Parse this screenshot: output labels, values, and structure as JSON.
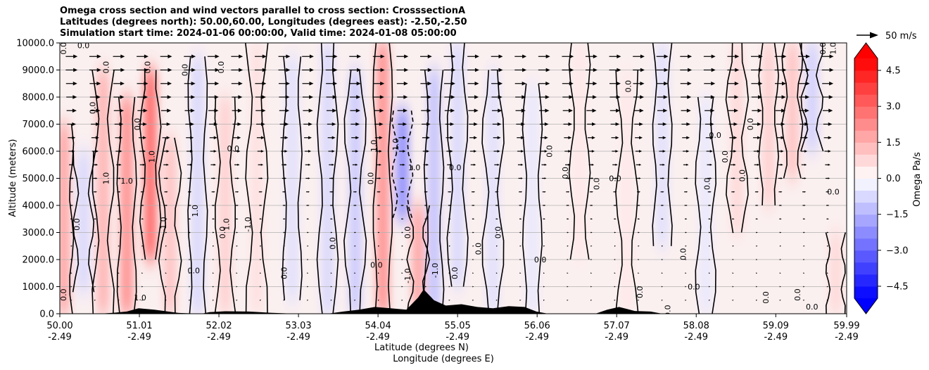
{
  "chart_data": {
    "type": "heatmap",
    "title_lines": [
      "Omega cross section and wind vectors parallel to cross section: CrosssectionA",
      "Latitudes (degrees north): 50.00,60.00, Longitudes (degrees east): -2.50,-2.50",
      "Simulation start time: 2024-01-06 00:00:00, Valid time: 2024-01-08 05:00:00"
    ],
    "xlabel_lat": "Latitude (degrees N)",
    "xlabel_lon": "Longitude (degrees E)",
    "ylabel": "Altitude (meters)",
    "xlim": [
      50.0,
      59.99
    ],
    "ylim": [
      0,
      10000
    ],
    "x_ticks": [
      {
        "lat": "50.00",
        "lon": "-2.49",
        "value": 50.0
      },
      {
        "lat": "51.01",
        "lon": "-2.49",
        "value": 51.01
      },
      {
        "lat": "52.02",
        "lon": "-2.49",
        "value": 52.02
      },
      {
        "lat": "53.03",
        "lon": "-2.49",
        "value": 53.03
      },
      {
        "lat": "54.04",
        "lon": "-2.49",
        "value": 54.04
      },
      {
        "lat": "55.05",
        "lon": "-2.49",
        "value": 55.05
      },
      {
        "lat": "56.06",
        "lon": "-2.49",
        "value": 56.06
      },
      {
        "lat": "57.07",
        "lon": "-2.49",
        "value": 57.07
      },
      {
        "lat": "58.08",
        "lon": "-2.49",
        "value": 58.08
      },
      {
        "lat": "59.09",
        "lon": "-2.49",
        "value": 59.09
      },
      {
        "lat": "59.99",
        "lon": "-2.49",
        "value": 59.99
      }
    ],
    "y_ticks": [
      {
        "label": "0.0",
        "value": 0
      },
      {
        "label": "1000.0",
        "value": 1000
      },
      {
        "label": "2000.0",
        "value": 2000
      },
      {
        "label": "3000.0",
        "value": 3000
      },
      {
        "label": "4000.0",
        "value": 4000
      },
      {
        "label": "5000.0",
        "value": 5000
      },
      {
        "label": "6000.0",
        "value": 6000
      },
      {
        "label": "7000.0",
        "value": 7000
      },
      {
        "label": "8000.0",
        "value": 8000
      },
      {
        "label": "9000.0",
        "value": 9000
      },
      {
        "label": "10000.0",
        "value": 10000
      }
    ],
    "grid": "horizontal",
    "colorbar": {
      "label": "Omega Pa/s",
      "range": [
        -5,
        5
      ],
      "ticks": [
        {
          "label": "4.5",
          "value": 4.5
        },
        {
          "label": "3.0",
          "value": 3.0
        },
        {
          "label": "1.5",
          "value": 1.5
        },
        {
          "label": "0.0",
          "value": 0.0
        },
        {
          "label": "−1.5",
          "value": -1.5
        },
        {
          "label": "−3.0",
          "value": -3.0
        },
        {
          "label": "−4.5",
          "value": -4.5
        }
      ],
      "colormap": "bwr",
      "extend": "both"
    },
    "quiver_key": {
      "label": "50 m/s",
      "speed": 50
    },
    "wind_rows": [
      {
        "altitude": 9500,
        "speed": 40
      },
      {
        "altitude": 9000,
        "speed": 40
      },
      {
        "altitude": 8500,
        "speed": 38
      },
      {
        "altitude": 8000,
        "speed": 36
      },
      {
        "altitude": 7500,
        "speed": 34
      },
      {
        "altitude": 7000,
        "speed": 30
      },
      {
        "altitude": 6500,
        "speed": 26
      },
      {
        "altitude": 6000,
        "speed": 22
      },
      {
        "altitude": 5500,
        "speed": 18
      },
      {
        "altitude": 5000,
        "speed": 15
      },
      {
        "altitude": 4500,
        "speed": 12
      },
      {
        "altitude": 4000,
        "speed": 10
      },
      {
        "altitude": 3500,
        "speed": 8
      },
      {
        "altitude": 3000,
        "speed": 6
      },
      {
        "altitude": 2500,
        "speed": 5
      },
      {
        "altitude": 2000,
        "speed": 4
      },
      {
        "altitude": 1500,
        "speed": 3
      },
      {
        "altitude": 1000,
        "speed": 2
      },
      {
        "altitude": 500,
        "speed": 2
      }
    ],
    "omega_features": [
      {
        "lat": 50.05,
        "alt_bottom": 0,
        "alt_top": 7000,
        "omega": 1.2
      },
      {
        "lat": 50.3,
        "alt_bottom": 800,
        "alt_top": 6000,
        "omega": -0.5
      },
      {
        "lat": 50.55,
        "alt_bottom": 0,
        "alt_top": 9000,
        "omega": 1.0
      },
      {
        "lat": 50.85,
        "alt_bottom": 0,
        "alt_top": 8000,
        "omega": 1.5
      },
      {
        "lat": 51.15,
        "alt_bottom": 2000,
        "alt_top": 9000,
        "omega": 2.0
      },
      {
        "lat": 51.4,
        "alt_bottom": 0,
        "alt_top": 6500,
        "omega": 0.8
      },
      {
        "lat": 51.75,
        "alt_bottom": 0,
        "alt_top": 9500,
        "omega": -0.5
      },
      {
        "lat": 52.1,
        "alt_bottom": 0,
        "alt_top": 8000,
        "omega": 0.6
      },
      {
        "lat": 52.5,
        "alt_bottom": 0,
        "alt_top": 10000,
        "omega": 0.4
      },
      {
        "lat": 52.95,
        "alt_bottom": 500,
        "alt_top": 9500,
        "omega": -0.4
      },
      {
        "lat": 53.4,
        "alt_bottom": 0,
        "alt_top": 10000,
        "omega": -0.5
      },
      {
        "lat": 53.75,
        "alt_bottom": 0,
        "alt_top": 9000,
        "omega": -0.7
      },
      {
        "lat": 54.1,
        "alt_bottom": 0,
        "alt_top": 10000,
        "omega": 1.5
      },
      {
        "lat": 54.35,
        "alt_bottom": 3500,
        "alt_top": 7500,
        "omega": -1.5
      },
      {
        "lat": 54.55,
        "alt_bottom": 0,
        "alt_top": 4000,
        "omega": 1.2
      },
      {
        "lat": 54.75,
        "alt_bottom": 0,
        "alt_top": 9000,
        "omega": -0.8
      },
      {
        "lat": 55.05,
        "alt_bottom": 1000,
        "alt_top": 10000,
        "omega": -0.5
      },
      {
        "lat": 55.5,
        "alt_bottom": 0,
        "alt_top": 9000,
        "omega": -0.4
      },
      {
        "lat": 56.0,
        "alt_bottom": 0,
        "alt_top": 8500,
        "omega": -0.3
      },
      {
        "lat": 56.6,
        "alt_bottom": 2000,
        "alt_top": 10000,
        "omega": 0.3
      },
      {
        "lat": 57.2,
        "alt_bottom": 0,
        "alt_top": 9000,
        "omega": 0.3
      },
      {
        "lat": 57.65,
        "alt_bottom": 2500,
        "alt_top": 10000,
        "omega": -0.4
      },
      {
        "lat": 58.2,
        "alt_bottom": 0,
        "alt_top": 8000,
        "omega": -0.3
      },
      {
        "lat": 58.6,
        "alt_bottom": 3000,
        "alt_top": 10000,
        "omega": 0.5
      },
      {
        "lat": 59.0,
        "alt_bottom": 4000,
        "alt_top": 10000,
        "omega": 0.6
      },
      {
        "lat": 59.3,
        "alt_bottom": 5000,
        "alt_top": 10000,
        "omega": 0.8
      },
      {
        "lat": 59.55,
        "alt_bottom": 6000,
        "alt_top": 10000,
        "omega": -0.6
      },
      {
        "lat": 59.85,
        "alt_bottom": 0,
        "alt_top": 3000,
        "omega": 0.5
      }
    ],
    "contour_labels": [
      {
        "text": "0.0",
        "lat": 50.08,
        "alt": 700
      },
      {
        "text": "0.0",
        "lat": 50.25,
        "alt": 3300
      },
      {
        "text": "0.0",
        "lat": 50.08,
        "alt": 9800
      },
      {
        "text": "0.0",
        "lat": 50.3,
        "alt": 9800
      },
      {
        "text": "0.0",
        "lat": 50.62,
        "alt": 9100
      },
      {
        "text": "0.0",
        "lat": 50.45,
        "alt": 7600
      },
      {
        "text": "1.0",
        "lat": 50.62,
        "alt": 5000
      },
      {
        "text": "1.0",
        "lat": 50.85,
        "alt": 4800
      },
      {
        "text": "0.0",
        "lat": 51.02,
        "alt": 7000
      },
      {
        "text": "1.0",
        "lat": 51.2,
        "alt": 5800
      },
      {
        "text": "0.0",
        "lat": 51.15,
        "alt": 9100
      },
      {
        "text": "1.0",
        "lat": 51.02,
        "alt": 500
      },
      {
        "text": "-1.0",
        "lat": 51.35,
        "alt": 3300
      },
      {
        "text": "0.0",
        "lat": 51.62,
        "alt": 9000
      },
      {
        "text": "1.0",
        "lat": 51.75,
        "alt": 3800
      },
      {
        "text": "0.0",
        "lat": 51.7,
        "alt": 1500
      },
      {
        "text": "0.0",
        "lat": 52.08,
        "alt": 9100
      },
      {
        "text": "1.0",
        "lat": 52.15,
        "alt": 3300
      },
      {
        "text": "0.0",
        "lat": 52.1,
        "alt": 3000
      },
      {
        "text": "0.0",
        "lat": 52.2,
        "alt": 6000
      },
      {
        "text": "-1.0",
        "lat": 52.42,
        "alt": 3300
      },
      {
        "text": "0.0",
        "lat": 52.88,
        "alt": 1500
      },
      {
        "text": "0.0",
        "lat": 53.5,
        "alt": 2600
      },
      {
        "text": "0.0",
        "lat": 54.02,
        "alt": 1700
      },
      {
        "text": "0.0",
        "lat": 53.98,
        "alt": 5000
      },
      {
        "text": "1.0",
        "lat": 54.02,
        "alt": 6200
      },
      {
        "text": "-1.0",
        "lat": 54.3,
        "alt": 6200
      },
      {
        "text": "1.0",
        "lat": 54.5,
        "alt": 5300
      },
      {
        "text": "0.0",
        "lat": 54.45,
        "alt": 3000
      },
      {
        "text": "-1.0",
        "lat": 54.45,
        "alt": 1400
      },
      {
        "text": "-1.0",
        "lat": 54.8,
        "alt": 1600
      },
      {
        "text": "0.0",
        "lat": 55.02,
        "alt": 5300
      },
      {
        "text": "0.0",
        "lat": 55.05,
        "alt": 1500
      },
      {
        "text": "0.0",
        "lat": 55.35,
        "alt": 2400
      },
      {
        "text": "0.0",
        "lat": 55.6,
        "alt": 3000
      },
      {
        "text": "0.0",
        "lat": 56.1,
        "alt": 1900
      },
      {
        "text": "0.0",
        "lat": 56.25,
        "alt": 6000
      },
      {
        "text": "0.0",
        "lat": 56.45,
        "alt": 5200
      },
      {
        "text": "0.0",
        "lat": 56.85,
        "alt": 4800
      },
      {
        "text": "0.0",
        "lat": 57.05,
        "alt": 4900
      },
      {
        "text": "0.0",
        "lat": 57.25,
        "alt": 8400
      },
      {
        "text": "0.0",
        "lat": 57.4,
        "alt": 800
      },
      {
        "text": "0.0",
        "lat": 57.95,
        "alt": 2200
      },
      {
        "text": "0.0",
        "lat": 58.05,
        "alt": 900
      },
      {
        "text": "0.0",
        "lat": 58.25,
        "alt": 4800
      },
      {
        "text": "0.0",
        "lat": 58.48,
        "alt": 5800
      },
      {
        "text": "0.0",
        "lat": 58.7,
        "alt": 5100
      },
      {
        "text": "0.0",
        "lat": 58.32,
        "alt": 6500
      },
      {
        "text": "0.0",
        "lat": 58.8,
        "alt": 7000
      },
      {
        "text": "0.0",
        "lat": 59.0,
        "alt": 600
      },
      {
        "text": "0.0",
        "lat": 59.4,
        "alt": 700
      },
      {
        "text": "0.0",
        "lat": 59.82,
        "alt": 4400
      },
      {
        "text": "0.0",
        "lat": 59.72,
        "alt": 9800
      },
      {
        "text": "1.0",
        "lat": 59.85,
        "alt": 9800
      },
      {
        "text": "0.0",
        "lat": 57.75,
        "alt": 100
      },
      {
        "text": "0.0",
        "lat": 59.55,
        "alt": 150
      }
    ],
    "terrain": [
      {
        "lat": 50.0,
        "alt": 0
      },
      {
        "lat": 50.5,
        "alt": 0
      },
      {
        "lat": 50.7,
        "alt": 40
      },
      {
        "lat": 50.85,
        "alt": 80
      },
      {
        "lat": 51.0,
        "alt": 200
      },
      {
        "lat": 51.2,
        "alt": 150
      },
      {
        "lat": 51.5,
        "alt": 30
      },
      {
        "lat": 51.8,
        "alt": 0
      },
      {
        "lat": 51.9,
        "alt": 60
      },
      {
        "lat": 52.1,
        "alt": 90
      },
      {
        "lat": 52.4,
        "alt": 80
      },
      {
        "lat": 52.7,
        "alt": 30
      },
      {
        "lat": 53.0,
        "alt": 0
      },
      {
        "lat": 53.4,
        "alt": 0
      },
      {
        "lat": 53.6,
        "alt": 80
      },
      {
        "lat": 53.8,
        "alt": 150
      },
      {
        "lat": 54.0,
        "alt": 250
      },
      {
        "lat": 54.2,
        "alt": 200
      },
      {
        "lat": 54.4,
        "alt": 150
      },
      {
        "lat": 54.55,
        "alt": 600
      },
      {
        "lat": 54.62,
        "alt": 900
      },
      {
        "lat": 54.75,
        "alt": 500
      },
      {
        "lat": 54.9,
        "alt": 300
      },
      {
        "lat": 55.1,
        "alt": 350
      },
      {
        "lat": 55.3,
        "alt": 250
      },
      {
        "lat": 55.5,
        "alt": 200
      },
      {
        "lat": 55.7,
        "alt": 280
      },
      {
        "lat": 55.9,
        "alt": 250
      },
      {
        "lat": 56.05,
        "alt": 80
      },
      {
        "lat": 56.2,
        "alt": 0
      },
      {
        "lat": 56.8,
        "alt": 0
      },
      {
        "lat": 56.95,
        "alt": 150
      },
      {
        "lat": 57.1,
        "alt": 250
      },
      {
        "lat": 57.3,
        "alt": 100
      },
      {
        "lat": 57.5,
        "alt": 80
      },
      {
        "lat": 57.65,
        "alt": 0
      },
      {
        "lat": 59.99,
        "alt": 0
      }
    ]
  }
}
